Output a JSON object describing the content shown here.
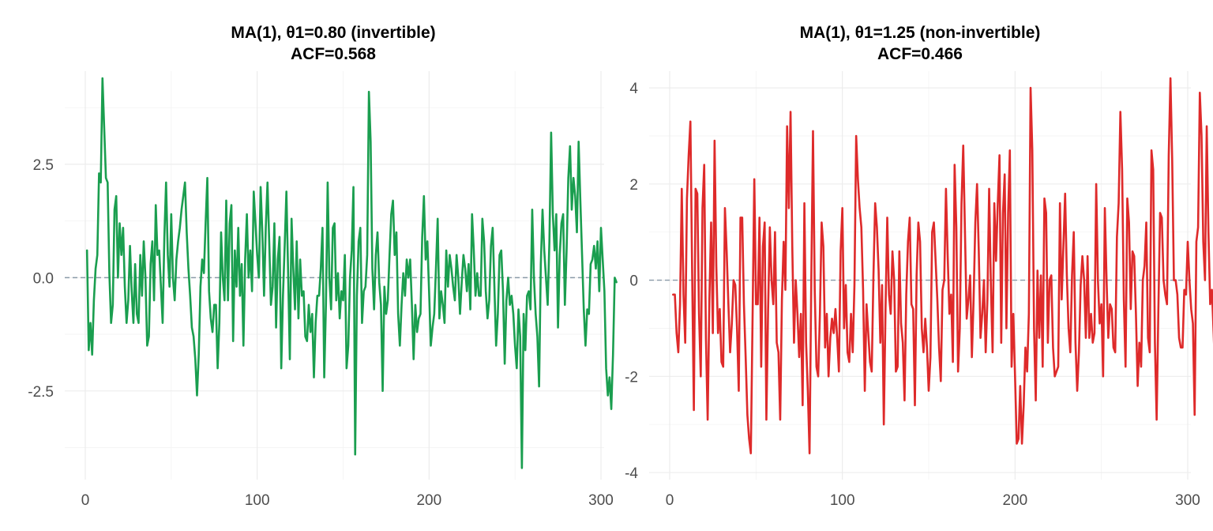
{
  "chart_data": [
    {
      "type": "line",
      "title": "MA(1), θ1=0.80 (invertible)",
      "subtitle": "ACF\u0001=0.568",
      "color": "#1a9e4f",
      "xlim": [
        0,
        300
      ],
      "ylim": [
        -4.3,
        4.4
      ],
      "xticks": [
        0,
        100,
        200,
        300
      ],
      "xtick_labels": [
        "0",
        "100",
        "200",
        "300"
      ],
      "yticks": [
        -2.5,
        0.0,
        2.5
      ],
      "ytick_labels": [
        "-2.5",
        "0.0",
        "2.5"
      ],
      "hline": 0,
      "grid": true,
      "series": [
        {
          "x_start": 1,
          "x_step": 1,
          "values": [
            0.6,
            -1.6,
            -1.0,
            -1.7,
            -0.5,
            0.2,
            0.5,
            2.3,
            2.1,
            4.4,
            3.3,
            2.2,
            2.1,
            0.1,
            -1.0,
            -0.6,
            1.5,
            1.8,
            0.0,
            1.2,
            0.5,
            1.1,
            -0.2,
            -1.0,
            -0.5,
            0.7,
            -0.3,
            -1.0,
            0.3,
            -0.8,
            -1.0,
            0.5,
            -0.4,
            0.8,
            0.0,
            -1.5,
            -1.3,
            0.3,
            0.8,
            -0.5,
            1.6,
            0.5,
            0.6,
            -0.2,
            -1.0,
            0.9,
            2.1,
            0.5,
            -0.2,
            1.4,
            0.0,
            -0.5,
            0.4,
            0.8,
            1.1,
            1.5,
            1.8,
            2.1,
            1.0,
            0.2,
            -0.4,
            -1.1,
            -1.3,
            -1.8,
            -2.6,
            -1.7,
            -0.2,
            0.4,
            0.1,
            1.2,
            2.2,
            -0.3,
            -0.9,
            -1.2,
            -0.6,
            -0.6,
            -2.0,
            -1.0,
            1.0,
            0.0,
            -0.5,
            1.7,
            -0.5,
            1.2,
            1.6,
            -1.4,
            0.6,
            -0.2,
            1.1,
            -0.4,
            0.3,
            -1.5,
            0.4,
            1.4,
            0.0,
            0.6,
            -0.3,
            1.9,
            1.2,
            0.5,
            0.0,
            2.0,
            1.0,
            -0.4,
            1.1,
            2.1,
            0.8,
            -0.6,
            -0.2,
            1.2,
            -1.1,
            0.4,
            0.9,
            -2.0,
            -0.4,
            0.7,
            1.9,
            0.1,
            -1.8,
            1.3,
            0.2,
            -0.7,
            0.8,
            -0.9,
            0.4,
            -0.4,
            -0.3,
            -1.3,
            -1.4,
            -0.6,
            -1.2,
            -0.8,
            -2.2,
            -1.0,
            -0.4,
            -0.4,
            0.2,
            1.1,
            -2.2,
            -0.6,
            2.1,
            0.0,
            -0.7,
            1.1,
            1.2,
            -0.5,
            0.1,
            -0.9,
            -0.3,
            -0.5,
            0.5,
            -2.0,
            -1.5,
            0.0,
            0.6,
            2.0,
            -3.9,
            -0.4,
            0.8,
            1.1,
            -1.0,
            -0.3,
            -0.2,
            0.5,
            4.1,
            3.0,
            0.2,
            -0.7,
            0.5,
            1.0,
            -0.1,
            -0.6,
            -2.5,
            -0.2,
            -0.8,
            -0.5,
            0.5,
            1.4,
            1.7,
            0.5,
            1.0,
            -0.8,
            -1.5,
            -0.6,
            0.1,
            -0.4,
            0.4,
            0.0,
            0.4,
            -0.6,
            -1.8,
            -0.6,
            -1.2,
            -0.9,
            -0.8,
            0.9,
            1.8,
            0.4,
            0.8,
            -0.3,
            -1.5,
            -1.1,
            -0.8,
            0.2,
            1.3,
            -0.9,
            -0.3,
            -0.6,
            -1.0,
            0.6,
            -0.2,
            0.5,
            0.2,
            -0.2,
            -0.5,
            0.5,
            0.0,
            -0.8,
            -0.1,
            0.5,
            0.2,
            -0.3,
            0.3,
            -0.7,
            1.4,
            0.6,
            -0.4,
            0.1,
            -0.4,
            -0.4,
            1.3,
            0.8,
            -0.3,
            -0.9,
            -0.5,
            0.7,
            1.1,
            -0.2,
            -1.5,
            -0.8,
            0.5,
            0.6,
            -0.3,
            -1.9,
            -0.5,
            0.0,
            -0.6,
            -0.4,
            -0.8,
            -1.5,
            -2.0,
            -0.7,
            -1.3,
            -4.2,
            -0.8,
            -1.6,
            -0.4,
            -0.3,
            -0.7,
            1.5,
            0.0,
            -0.8,
            -1.3,
            -2.4,
            0.3,
            1.5,
            0.6,
            0.0,
            -0.6,
            0.8,
            3.2,
            1.4,
            0.6,
            1.4,
            -1.1,
            0.5,
            1.2,
            1.4,
            -0.6,
            0.6,
            2.2,
            2.9,
            1.5,
            2.2,
            1.8,
            1.0,
            3.0,
            1.7,
            0.5,
            -0.7,
            -1.5,
            -0.7,
            -0.8,
            0.3,
            0.4,
            0.7,
            0.2,
            0.8,
            -0.3,
            1.1,
            0.4,
            -0.3,
            -2.0,
            -2.6,
            -2.2,
            -2.9,
            -1.7,
            0.0,
            -0.1
          ]
        }
      ]
    },
    {
      "type": "line",
      "title": "MA(1), θ1=1.25 (non-invertible)",
      "subtitle": "ACF\u0001=0.466",
      "color": "#de2a2a",
      "xlim": [
        0,
        300
      ],
      "ylim": [
        -4.0,
        4.2
      ],
      "xticks": [
        0,
        100,
        200,
        300
      ],
      "xtick_labels": [
        "0",
        "100",
        "200",
        "300"
      ],
      "yticks": [
        -4,
        -2,
        0,
        2,
        4
      ],
      "ytick_labels": [
        "-4",
        "-2",
        "0",
        "2",
        "4"
      ],
      "hline": 0,
      "grid": true,
      "series": [
        {
          "x_start": 2,
          "x_step": 1,
          "values": [
            -0.3,
            -0.3,
            -1.1,
            -1.5,
            -0.5,
            1.9,
            -0.3,
            -1.3,
            1.7,
            2.6,
            3.3,
            0.2,
            -2.7,
            1.9,
            1.8,
            -0.7,
            -2.0,
            1.5,
            2.4,
            -1.2,
            -2.9,
            -0.4,
            1.2,
            -1.1,
            2.9,
            0.3,
            -1.1,
            -0.6,
            -1.7,
            -1.8,
            1.5,
            0.6,
            -0.5,
            -1.5,
            -0.9,
            0.0,
            -0.1,
            -1.0,
            -2.3,
            1.3,
            1.3,
            -0.5,
            -1.6,
            -2.8,
            -3.3,
            -3.6,
            -0.8,
            2.1,
            -0.5,
            -0.5,
            1.3,
            -1.8,
            0.7,
            1.2,
            -2.9,
            -0.6,
            1.1,
            0.0,
            -0.5,
            1.0,
            -1.3,
            -1.5,
            -2.9,
            -0.4,
            0.8,
            -0.2,
            3.2,
            1.5,
            3.5,
            0.7,
            -1.3,
            0.0,
            -0.7,
            -1.6,
            -0.7,
            -2.6,
            1.6,
            -1.3,
            -2.3,
            -3.6,
            0.0,
            3.1,
            -0.2,
            -1.8,
            -2.0,
            -0.7,
            1.2,
            0.7,
            -1.4,
            -0.7,
            -2.0,
            -1.2,
            -0.8,
            -1.1,
            -0.6,
            -1.2,
            -1.9,
            0.6,
            1.5,
            -1.0,
            -0.1,
            -1.5,
            -1.7,
            -0.7,
            -1.5,
            -0.1,
            3.0,
            2.1,
            1.5,
            1.1,
            -0.2,
            -2.3,
            -0.5,
            -1.1,
            -1.7,
            -1.9,
            0.1,
            1.6,
            1.1,
            0.2,
            -1.3,
            -0.1,
            -3.0,
            -0.6,
            1.3,
            -0.3,
            -0.7,
            0.6,
            0.0,
            -1.9,
            -1.8,
            0.6,
            -0.9,
            -1.3,
            -2.5,
            -0.3,
            0.8,
            1.3,
            -0.5,
            -0.6,
            -2.6,
            0.1,
            1.2,
            0.8,
            -1.0,
            -1.5,
            -0.8,
            -1.4,
            -2.3,
            -1.6,
            1.0,
            1.2,
            0.4,
            -0.4,
            -1.4,
            -2.1,
            -0.2,
            0.0,
            1.9,
            0.5,
            -0.7,
            -0.3,
            -1.7,
            2.4,
            1.1,
            -1.9,
            -1.0,
            1.6,
            2.8,
            1.0,
            -0.8,
            -0.4,
            0.1,
            -1.6,
            -0.4,
            1.2,
            2.0,
            0.6,
            -1.2,
            -0.7,
            0.0,
            -1.5,
            -0.4,
            1.9,
            -0.1,
            -1.5,
            1.6,
            0.4,
            1.6,
            2.6,
            -1.3,
            1.4,
            2.2,
            -1.0,
            1.4,
            2.7,
            -1.8,
            -0.7,
            -2.0,
            -3.4,
            -3.3,
            -2.2,
            -3.4,
            -2.6,
            -1.4,
            -1.9,
            -0.7,
            4.0,
            2.7,
            -1.0,
            -2.5,
            0.2,
            -1.2,
            0.1,
            -1.8,
            1.7,
            1.4,
            -1.3,
            0.0,
            0.1,
            -1.4,
            -2.0,
            -1.9,
            -1.8,
            1.6,
            -0.4,
            0.7,
            1.8,
            0.1,
            -1.0,
            -1.5,
            0.1,
            1.0,
            -1.3,
            -2.3,
            -1.5,
            -0.1,
            0.5,
            0.0,
            -1.2,
            0.5,
            -1.2,
            -0.7,
            -1.3,
            -1.1,
            2.0,
            0.0,
            -0.9,
            -0.5,
            -2.0,
            1.5,
            0.0,
            -1.2,
            -0.5,
            -0.6,
            -1.4,
            -1.5,
            0.9,
            1.6,
            3.5,
            2.3,
            -0.4,
            -1.8,
            1.7,
            1.2,
            -0.6,
            0.6,
            0.5,
            -0.7,
            -2.2,
            -1.3,
            -1.8,
            0.0,
            0.3,
            1.2,
            -1.2,
            -1.5,
            2.7,
            2.3,
            -1.3,
            -2.9,
            -0.6,
            1.4,
            1.3,
            0.0,
            -0.3,
            -0.5,
            2.6,
            4.2,
            2.5,
            0.0,
            0.0,
            -0.3,
            -1.2,
            -1.4,
            -1.4,
            -0.2,
            -0.3,
            0.8,
            0.0,
            -0.6,
            -0.9,
            -2.8,
            0.8,
            1.1,
            3.9,
            3.0,
            0.8,
            0.0,
            3.2,
            1.0,
            -0.5,
            -0.2,
            -1.1,
            -2.1,
            -1.4
          ]
        }
      ]
    }
  ]
}
